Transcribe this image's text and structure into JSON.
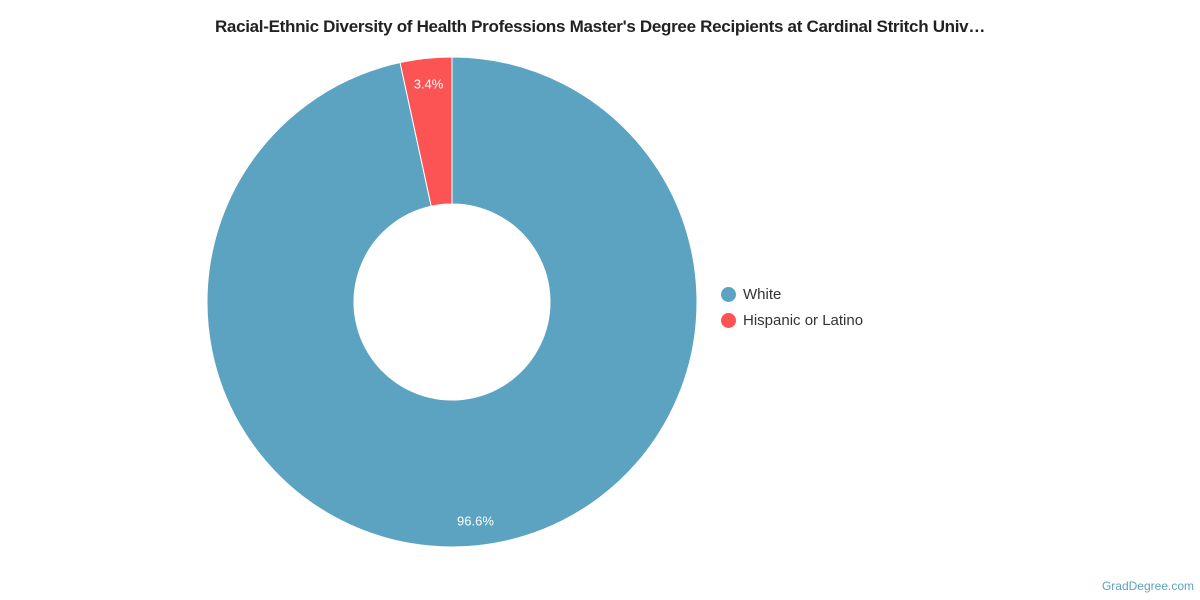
{
  "title": "Racial-Ethnic Diversity of Health Professions Master's Degree Recipients at Cardinal Stritch Univ…",
  "credit": "GradDegree.com",
  "chart_data": {
    "type": "pie",
    "donut": true,
    "title": "Racial-Ethnic Diversity of Health Professions Master's Degree Recipients at Cardinal Stritch Univ…",
    "legend_position": "right",
    "slices": [
      {
        "name": "White",
        "value": 96.6,
        "label": "96.6%",
        "color": "#5ba3c0"
      },
      {
        "name": "Hispanic or Latino",
        "value": 3.4,
        "label": "3.4%",
        "color": "#fc5454"
      }
    ]
  }
}
